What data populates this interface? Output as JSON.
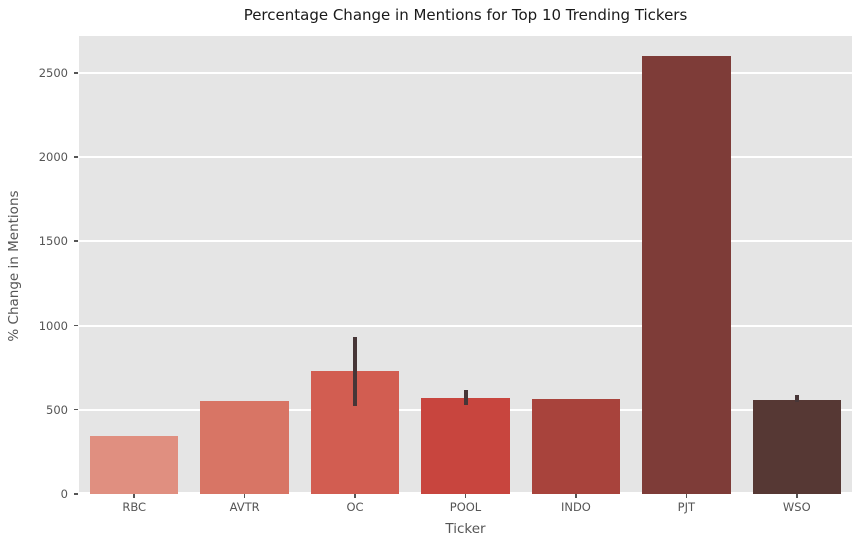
{
  "chart_data": {
    "type": "bar",
    "title": "Percentage Change in Mentions for Top 10 Trending Tickers",
    "xlabel": "Ticker",
    "ylabel": "% Change in Mentions",
    "categories": [
      "RBC",
      "AVTR",
      "OC",
      "POOL",
      "INDO",
      "PJT",
      "WSO"
    ],
    "values": [
      345,
      553,
      728,
      570,
      567,
      2600,
      561
    ],
    "error_bars": [
      null,
      null,
      {
        "low": 520,
        "high": 933
      },
      {
        "low": 527,
        "high": 619
      },
      null,
      null,
      {
        "low": 549,
        "high": 589
      }
    ],
    "bar_colors": [
      "#e08f80",
      "#d87565",
      "#d25d51",
      "#c8453e",
      "#a8433c",
      "#7e3c38",
      "#563834"
    ],
    "error_bar_color": "#473637",
    "ylim": [
      0,
      2720
    ],
    "yticks": [
      0,
      500,
      1000,
      1500,
      2000,
      2500
    ],
    "grid": "horizontal-white-major",
    "legend": "none",
    "plot_bg_color": "#e5e5e5",
    "tick_label_color": "#555555"
  }
}
